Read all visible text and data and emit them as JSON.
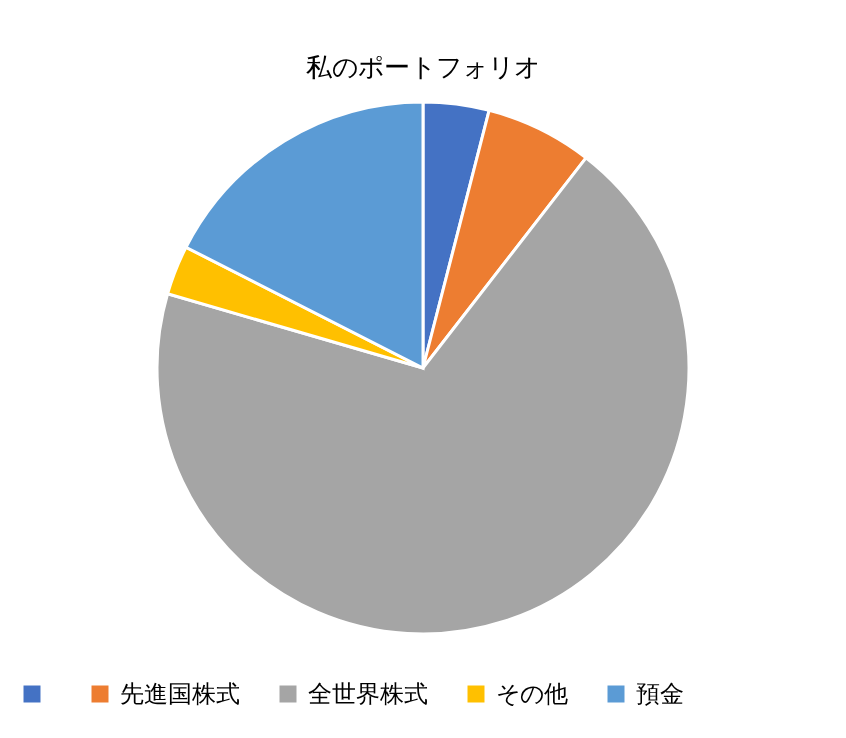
{
  "chart_data": {
    "type": "pie",
    "title": "私のポートフォリオ",
    "categories": [
      null,
      "先進国株式",
      "全世界株式",
      "その他",
      "預金"
    ],
    "values": [
      4,
      6.5,
      69,
      3,
      17.5
    ],
    "colors": [
      "#4472c4",
      "#ed7d31",
      "#a5a5a5",
      "#ffc000",
      "#5b9bd5"
    ],
    "legend": "bottom"
  }
}
